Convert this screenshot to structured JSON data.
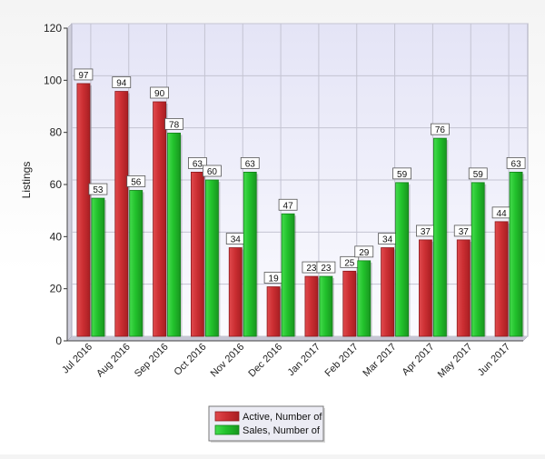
{
  "chart_data": {
    "type": "bar",
    "title": "",
    "xlabel": "",
    "ylabel": "Listings",
    "ylim": [
      0,
      120
    ],
    "yticks": [
      0,
      20,
      40,
      60,
      80,
      100,
      120
    ],
    "grid": true,
    "legend_position": "bottom-center",
    "categories": [
      "Jul 2016",
      "Aug 2016",
      "Sep 2016",
      "Oct 2016",
      "Nov 2016",
      "Dec 2016",
      "Jan 2017",
      "Feb 2017",
      "Mar 2017",
      "Apr 2017",
      "May 2017",
      "Jun 2017"
    ],
    "series": [
      {
        "name": "Active, Number of",
        "color": "#cc2f33",
        "values": [
          97,
          94,
          90,
          63,
          34,
          19,
          23,
          25,
          34,
          37,
          37,
          44
        ]
      },
      {
        "name": "Sales, Number of",
        "color": "#22c22c",
        "values": [
          53,
          56,
          78,
          60,
          63,
          47,
          23,
          29,
          59,
          76,
          59,
          63
        ]
      }
    ]
  }
}
